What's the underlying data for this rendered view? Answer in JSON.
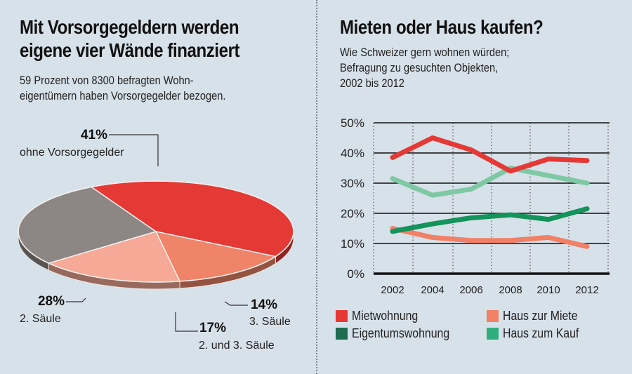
{
  "left": {
    "title_line1": "Mit Vorsorgegeldern werden",
    "title_line2": "eigene vier Wände finanziert",
    "subtitle_line1": "59 Prozent von 8300 befragten Wohn-",
    "subtitle_line2": "eigentümern haben Vorsorgegelder bezogen."
  },
  "right": {
    "title": "Mieten oder Haus kaufen?",
    "subtitle_line1": "Wie Schweizer gern wohnen würden;",
    "subtitle_line2": "Befragung zu gesuchten Objekten,",
    "subtitle_line3": "2002 bis 2012"
  },
  "chart_data": [
    {
      "type": "pie",
      "title": "Mit Vorsorgegeldern werden eigene vier Wände finanziert",
      "subtitle": "59 Prozent von 8300 befragten Wohneigentümern haben Vorsorgegelder bezogen.",
      "slices": [
        {
          "label": "ohne Vorsorgegelder",
          "value": 41,
          "pct_label": "41%",
          "color": "#e53935"
        },
        {
          "label": "3. Säule",
          "value": 14,
          "pct_label": "14%",
          "color": "#ef8468"
        },
        {
          "label": "2. und 3. Säule",
          "value": 17,
          "pct_label": "17%",
          "color": "#f5a996"
        },
        {
          "label": "2. Säule",
          "value": 28,
          "pct_label": "28%",
          "color": "#8c8784"
        }
      ]
    },
    {
      "type": "line",
      "title": "Mieten oder Haus kaufen?",
      "subtitle": "Wie Schweizer gern wohnen würden; Befragung zu gesuchten Objekten, 2002 bis 2012",
      "x": [
        2002,
        2004,
        2006,
        2008,
        2010,
        2012
      ],
      "x_tick_labels": [
        "2002",
        "2004",
        "2006",
        "2008",
        "2010",
        "2012"
      ],
      "y_tick_labels": [
        "0%",
        "10%",
        "20%",
        "30%",
        "40%",
        "50%"
      ],
      "y_ticks": [
        0,
        10,
        20,
        30,
        40,
        50
      ],
      "ylim": [
        0,
        50
      ],
      "xlabel": "",
      "ylabel": "",
      "grid": true,
      "legend_position": "bottom",
      "series": [
        {
          "name": "Mietwohnung",
          "color": "#e53935",
          "values": [
            38.5,
            45,
            41,
            34,
            38,
            37.5
          ]
        },
        {
          "name": "Haus zur Miete",
          "color": "#f08066",
          "values": [
            15,
            12,
            11,
            11,
            12,
            9
          ]
        },
        {
          "name": "Eigentumswohnung",
          "color": "#14935a",
          "values": [
            14,
            16.5,
            18.5,
            19.5,
            18,
            21.5
          ]
        },
        {
          "name": "Haus zum Kauf",
          "color": "#7ec8a4",
          "values": [
            31.5,
            26,
            28,
            35,
            32.5,
            30
          ]
        }
      ],
      "legend": [
        {
          "name": "Mietwohnung",
          "swatch": "#e53935"
        },
        {
          "name": "Haus zur Miete",
          "swatch": "#f08066"
        },
        {
          "name": "Eigentumswohnung",
          "swatch": "#1f6b4f"
        },
        {
          "name": "Haus zum Kauf",
          "swatch": "#2fae7d"
        }
      ]
    }
  ]
}
